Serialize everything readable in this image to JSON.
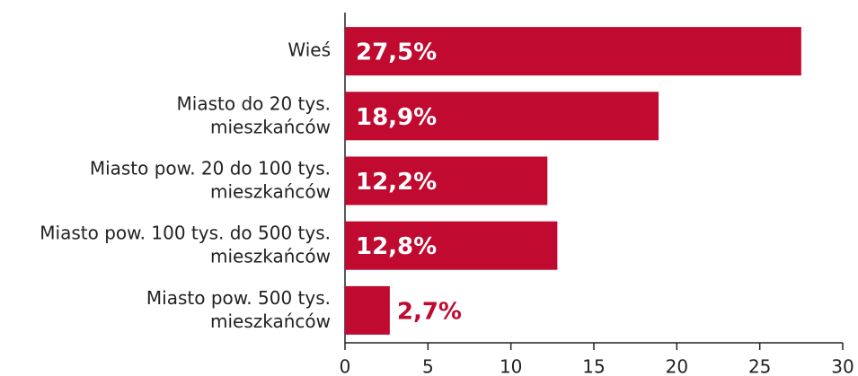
{
  "chart_data": {
    "type": "bar",
    "orientation": "horizontal",
    "categories": [
      "Wieś",
      "Miasto do 20 tys.\nmieszkańców",
      "Miasto pow. 20 do 100 tys.\nmieszkańców",
      "Miasto pow. 100 tys. do 500 tys.\nmieszkańców",
      "Miasto pow. 500 tys.\nmieszkańców"
    ],
    "values": [
      27.5,
      18.9,
      12.2,
      12.8,
      2.7
    ],
    "value_labels": [
      "27,5%",
      "18,9%",
      "12,2%",
      "12,8%",
      "2,7%"
    ],
    "color": "#c00a30",
    "xlim": [
      0,
      30
    ],
    "xticks": [
      0,
      5,
      10,
      15,
      20,
      25,
      30
    ],
    "grid": false
  }
}
